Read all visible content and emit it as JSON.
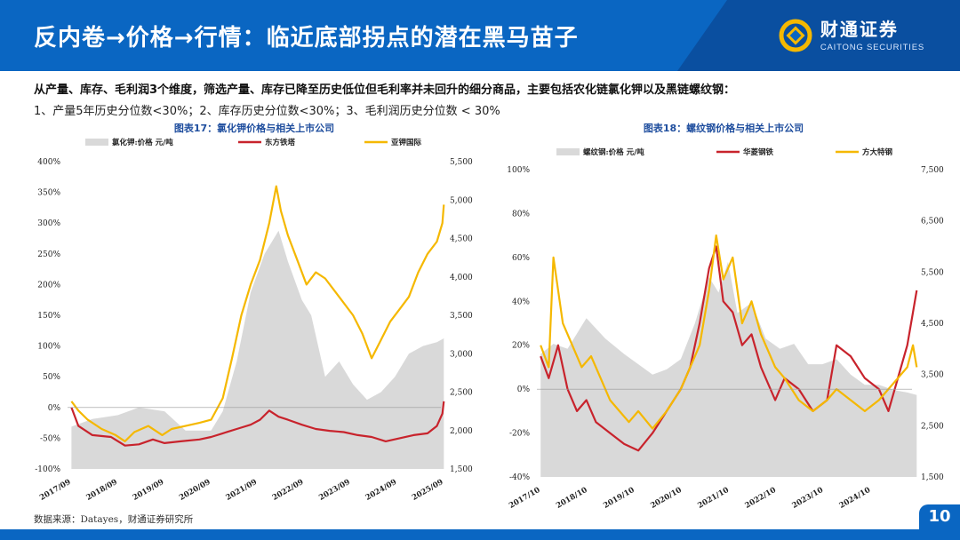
{
  "header": {
    "title": "反内卷→价格→行情：临近底部拐点的潜在黑马苗子",
    "brand_cn": "财通证券",
    "brand_en": "CAITONG SECURITIES",
    "color": "#0a66c2"
  },
  "intro": {
    "line1": "从产量、库存、毛利润3个维度，筛选产量、库存已降至历史低位但毛利率并未回升的细分商品，主要包括农化链氯化钾以及黑链螺纹钢：",
    "line2": "1、产量5年历史分位数<30%；2、库存历史分位数<30%；3、毛利润历史分位数 < 30%"
  },
  "footer": {
    "source": "数据来源：Datayes，财通证券研究所",
    "page": "10"
  },
  "chart_data": [
    {
      "title": "图表17：氯化钾价格与相关上市公司",
      "type": "line",
      "legend_position": "top",
      "xlabel_ticks": [
        "2017/09",
        "2018/09",
        "2019/09",
        "2020/09",
        "2021/09",
        "2022/09",
        "2023/09",
        "2024/09",
        "2025/09"
      ],
      "left_axis": {
        "ylim": [
          -100,
          400
        ],
        "ticks": [
          "-100%",
          "-50%",
          "0%",
          "50%",
          "100%",
          "150%",
          "200%",
          "250%",
          "300%",
          "350%",
          "400%"
        ]
      },
      "right_axis": {
        "ylim": [
          1500,
          5500
        ],
        "ticks": [
          "1,500",
          "2,000",
          "2,500",
          "3,000",
          "3,500",
          "4,000",
          "4,500",
          "5,000",
          "5,500"
        ]
      },
      "series": [
        {
          "name": "氯化钾:价格 元/吨",
          "kind": "area",
          "axis": "right",
          "color": "#d9d9d9",
          "x": [
            2017.75,
            2018.2,
            2018.75,
            2019.2,
            2019.75,
            2020.2,
            2020.75,
            2021.0,
            2021.3,
            2021.6,
            2021.9,
            2022.2,
            2022.4,
            2022.7,
            2022.9,
            2023.2,
            2023.5,
            2023.8,
            2024.1,
            2024.4,
            2024.7,
            2025.0,
            2025.3,
            2025.6,
            2025.75
          ],
          "values": [
            2050,
            2150,
            2200,
            2300,
            2250,
            2000,
            2000,
            2250,
            2900,
            3800,
            4300,
            4600,
            4200,
            3700,
            3500,
            2700,
            2900,
            2600,
            2400,
            2500,
            2700,
            3000,
            3100,
            3150,
            3200
          ]
        },
        {
          "name": "东方铁塔",
          "kind": "line",
          "axis": "left",
          "color": "#c8232c",
          "x": [
            2017.75,
            2017.9,
            2018.2,
            2018.6,
            2018.9,
            2019.2,
            2019.5,
            2019.75,
            2020.1,
            2020.5,
            2020.75,
            2021.0,
            2021.3,
            2021.6,
            2021.8,
            2022.0,
            2022.2,
            2022.4,
            2022.7,
            2023.0,
            2023.3,
            2023.6,
            2023.9,
            2024.2,
            2024.5,
            2024.8,
            2025.1,
            2025.4,
            2025.6,
            2025.72,
            2025.75
          ],
          "values": [
            0,
            -30,
            -45,
            -48,
            -62,
            -60,
            -52,
            -58,
            -55,
            -52,
            -48,
            -42,
            -35,
            -28,
            -20,
            -5,
            -15,
            -20,
            -28,
            -35,
            -38,
            -40,
            -45,
            -48,
            -55,
            -50,
            -45,
            -42,
            -30,
            -10,
            10
          ]
        },
        {
          "name": "亚钾国际",
          "kind": "line",
          "axis": "left",
          "color": "#f5b800",
          "x": [
            2017.75,
            2017.9,
            2018.1,
            2018.4,
            2018.7,
            2018.9,
            2019.1,
            2019.4,
            2019.7,
            2019.9,
            2020.2,
            2020.5,
            2020.75,
            2021.0,
            2021.2,
            2021.4,
            2021.6,
            2021.8,
            2022.0,
            2022.15,
            2022.25,
            2022.4,
            2022.6,
            2022.8,
            2023.0,
            2023.2,
            2023.5,
            2023.8,
            2024.0,
            2024.2,
            2024.4,
            2024.6,
            2024.8,
            2025.0,
            2025.2,
            2025.4,
            2025.6,
            2025.72,
            2025.75
          ],
          "values": [
            10,
            -5,
            -20,
            -35,
            -45,
            -55,
            -40,
            -30,
            -45,
            -35,
            -30,
            -25,
            -20,
            15,
            80,
            150,
            200,
            240,
            300,
            360,
            320,
            280,
            240,
            200,
            220,
            210,
            180,
            150,
            120,
            80,
            110,
            140,
            160,
            180,
            220,
            250,
            270,
            300,
            330
          ]
        }
      ]
    },
    {
      "title": "图表18：螺纹钢价格与相关上市公司",
      "type": "line",
      "legend_position": "top",
      "xlabel_ticks": [
        "2017/10",
        "2018/10",
        "2019/10",
        "2020/10",
        "2021/10",
        "2022/10",
        "2023/10",
        "2024/10"
      ],
      "left_axis": {
        "ylim": [
          -40,
          100
        ],
        "ticks": [
          "-40%",
          "-20%",
          "0%",
          "20%",
          "40%",
          "60%",
          "80%",
          "100%"
        ]
      },
      "right_axis": {
        "ylim": [
          1500,
          7500
        ],
        "ticks": [
          "1,500",
          "2,500",
          "3,500",
          "4,500",
          "5,500",
          "6,500",
          "7,500"
        ]
      },
      "series": [
        {
          "name": "螺纹钢:价格 元/吨",
          "kind": "area",
          "axis": "right",
          "color": "#d9d9d9",
          "x": [
            2017.83,
            2018.1,
            2018.4,
            2018.8,
            2019.2,
            2019.6,
            2019.9,
            2020.2,
            2020.5,
            2020.8,
            2021.1,
            2021.4,
            2021.6,
            2021.8,
            2022.0,
            2022.3,
            2022.6,
            2022.9,
            2023.2,
            2023.5,
            2023.8,
            2024.1,
            2024.4,
            2024.7,
            2025.0,
            2025.3,
            2025.6,
            2025.8
          ],
          "values": [
            3900,
            4100,
            4000,
            4600,
            4200,
            3900,
            3700,
            3500,
            3600,
            3800,
            4500,
            5400,
            5100,
            5700,
            4700,
            4900,
            4200,
            4000,
            4100,
            3700,
            3700,
            3800,
            3500,
            3300,
            3300,
            3200,
            3150,
            3100
          ]
        },
        {
          "name": "华菱钢铁",
          "kind": "line",
          "axis": "left",
          "color": "#c8232c",
          "x": [
            2017.83,
            2018.0,
            2018.2,
            2018.4,
            2018.6,
            2018.8,
            2019.0,
            2019.3,
            2019.6,
            2019.9,
            2020.2,
            2020.5,
            2020.8,
            2021.0,
            2021.2,
            2021.4,
            2021.55,
            2021.7,
            2021.9,
            2022.1,
            2022.3,
            2022.5,
            2022.8,
            2023.0,
            2023.3,
            2023.6,
            2023.9,
            2024.1,
            2024.4,
            2024.7,
            2025.0,
            2025.2,
            2025.4,
            2025.6,
            2025.72,
            2025.8
          ],
          "values": [
            15,
            5,
            20,
            0,
            -10,
            -5,
            -15,
            -20,
            -25,
            -28,
            -20,
            -10,
            0,
            10,
            30,
            55,
            65,
            40,
            35,
            20,
            25,
            10,
            -5,
            5,
            0,
            -10,
            -5,
            20,
            15,
            5,
            0,
            -10,
            5,
            20,
            35,
            45
          ]
        },
        {
          "name": "方大特钢",
          "kind": "line",
          "axis": "left",
          "color": "#f5b800",
          "x": [
            2017.83,
            2018.0,
            2018.1,
            2018.3,
            2018.5,
            2018.7,
            2018.9,
            2019.1,
            2019.3,
            2019.5,
            2019.7,
            2019.9,
            2020.2,
            2020.5,
            2020.8,
            2021.0,
            2021.2,
            2021.4,
            2021.55,
            2021.7,
            2021.9,
            2022.1,
            2022.3,
            2022.5,
            2022.8,
            2023.0,
            2023.3,
            2023.6,
            2023.9,
            2024.1,
            2024.4,
            2024.7,
            2025.0,
            2025.2,
            2025.4,
            2025.6,
            2025.72,
            2025.8
          ],
          "values": [
            20,
            10,
            60,
            30,
            20,
            10,
            15,
            5,
            -5,
            -10,
            -15,
            -10,
            -18,
            -10,
            0,
            10,
            20,
            45,
            70,
            50,
            60,
            30,
            40,
            25,
            10,
            5,
            -5,
            -10,
            -5,
            0,
            -5,
            -10,
            -5,
            0,
            5,
            10,
            20,
            10
          ]
        }
      ]
    }
  ]
}
